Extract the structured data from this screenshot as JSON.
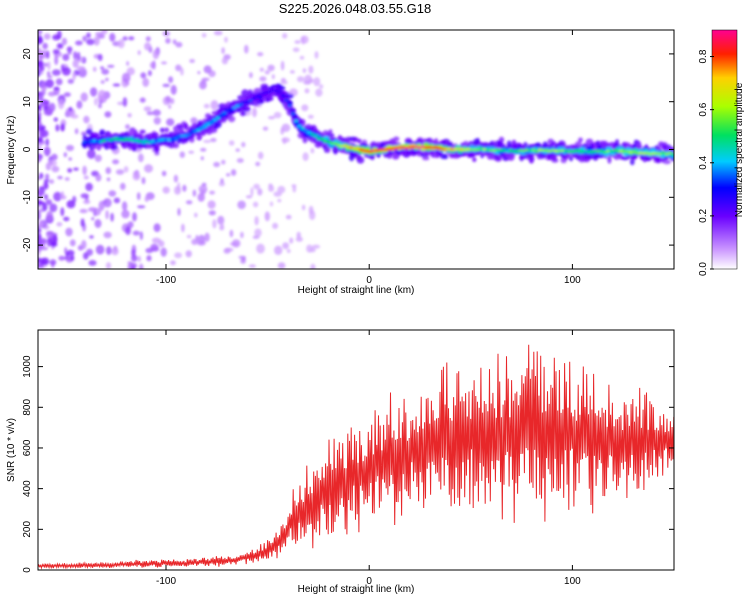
{
  "figure_title": "S225.2026.048.03.55.G18",
  "colors": {
    "snr_line": "#e8272a",
    "frame": "#000000",
    "background": "#ffffff"
  },
  "chart_data": [
    {
      "type": "heatmap",
      "title": "S225.2026.048.03.55.G18",
      "xlabel": "Height of straight line (km)",
      "ylabel": "Frequency (Hz)",
      "xlim": [
        -163,
        150
      ],
      "ylim": [
        -25,
        25
      ],
      "x_ticks": [
        -100,
        0,
        100
      ],
      "y_ticks": [
        -20,
        -10,
        0,
        10,
        20
      ],
      "x_tick_labels": [
        "-100",
        "0",
        "100"
      ],
      "y_tick_labels": [
        "-20",
        "-10",
        "0",
        "10",
        "20"
      ],
      "colorbar": {
        "label": "Normalized spectral amplitude",
        "range": [
          0,
          0.9
        ],
        "ticks": [
          0.0,
          0.2,
          0.4,
          0.6,
          0.8
        ],
        "tick_labels": [
          "0.0",
          "0.2",
          "0.4",
          "0.6",
          "0.8"
        ]
      },
      "ridge": {
        "x": [
          -140,
          -130,
          -120,
          -110,
          -100,
          -90,
          -80,
          -70,
          -60,
          -50,
          -45,
          -40,
          -35,
          -30,
          -25,
          -20,
          -15,
          -10,
          -5,
          0,
          10,
          20,
          30,
          40,
          50,
          60,
          70,
          80,
          90,
          100,
          110,
          120,
          130,
          140,
          150
        ],
        "y": [
          1.5,
          2,
          2.2,
          1.5,
          2,
          3,
          5,
          8,
          10,
          12,
          12.5,
          10,
          5,
          3.5,
          2.5,
          1.5,
          1,
          0.5,
          0,
          -0.5,
          0.2,
          0.5,
          0.5,
          0,
          0,
          0,
          -0.3,
          -0.2,
          -0.3,
          -0.3,
          -0.5,
          -0.3,
          -0.5,
          -0.8,
          -1
        ],
        "amplitude": [
          0.35,
          0.45,
          0.5,
          0.45,
          0.4,
          0.35,
          0.45,
          0.35,
          0.3,
          0.25,
          0.25,
          0.3,
          0.4,
          0.45,
          0.5,
          0.55,
          0.6,
          0.7,
          0.75,
          0.85,
          0.85,
          0.9,
          0.85,
          0.7,
          0.6,
          0.55,
          0.5,
          0.55,
          0.6,
          0.55,
          0.5,
          0.55,
          0.6,
          0.6,
          0.55
        ]
      }
    },
    {
      "type": "line",
      "xlabel": "Height of straight line (km)",
      "ylabel": "SNR (10 * v/v)",
      "xlim": [
        -163,
        150
      ],
      "ylim": [
        0,
        1180
      ],
      "x_ticks": [
        -100,
        0,
        100
      ],
      "y_ticks": [
        0,
        200,
        400,
        600,
        800,
        1000
      ],
      "x_tick_labels": [
        "-100",
        "0",
        "100"
      ],
      "y_tick_labels": [
        "0",
        "200",
        "400",
        "600",
        "800",
        "1000"
      ],
      "series": [
        {
          "name": "SNR",
          "x": [
            -163,
            -150,
            -130,
            -110,
            -90,
            -70,
            -55,
            -48,
            -42,
            -38,
            -34,
            -30,
            -27,
            -22,
            -15,
            -8,
            0,
            10,
            20,
            30,
            35,
            40,
            50,
            60,
            70,
            75,
            80,
            85,
            90,
            100,
            110,
            120,
            130,
            140,
            150
          ],
          "center": [
            20,
            22,
            25,
            30,
            35,
            45,
            70,
            110,
            170,
            240,
            280,
            310,
            340,
            380,
            420,
            460,
            500,
            540,
            580,
            620,
            640,
            660,
            660,
            670,
            680,
            690,
            700,
            690,
            680,
            670,
            650,
            640,
            640,
            640,
            650
          ],
          "spread": [
            10,
            12,
            15,
            18,
            20,
            25,
            40,
            60,
            100,
            140,
            180,
            200,
            230,
            250,
            260,
            260,
            280,
            300,
            320,
            340,
            350,
            360,
            370,
            380,
            400,
            400,
            420,
            400,
            380,
            360,
            330,
            300,
            260,
            200,
            120
          ]
        }
      ]
    }
  ]
}
